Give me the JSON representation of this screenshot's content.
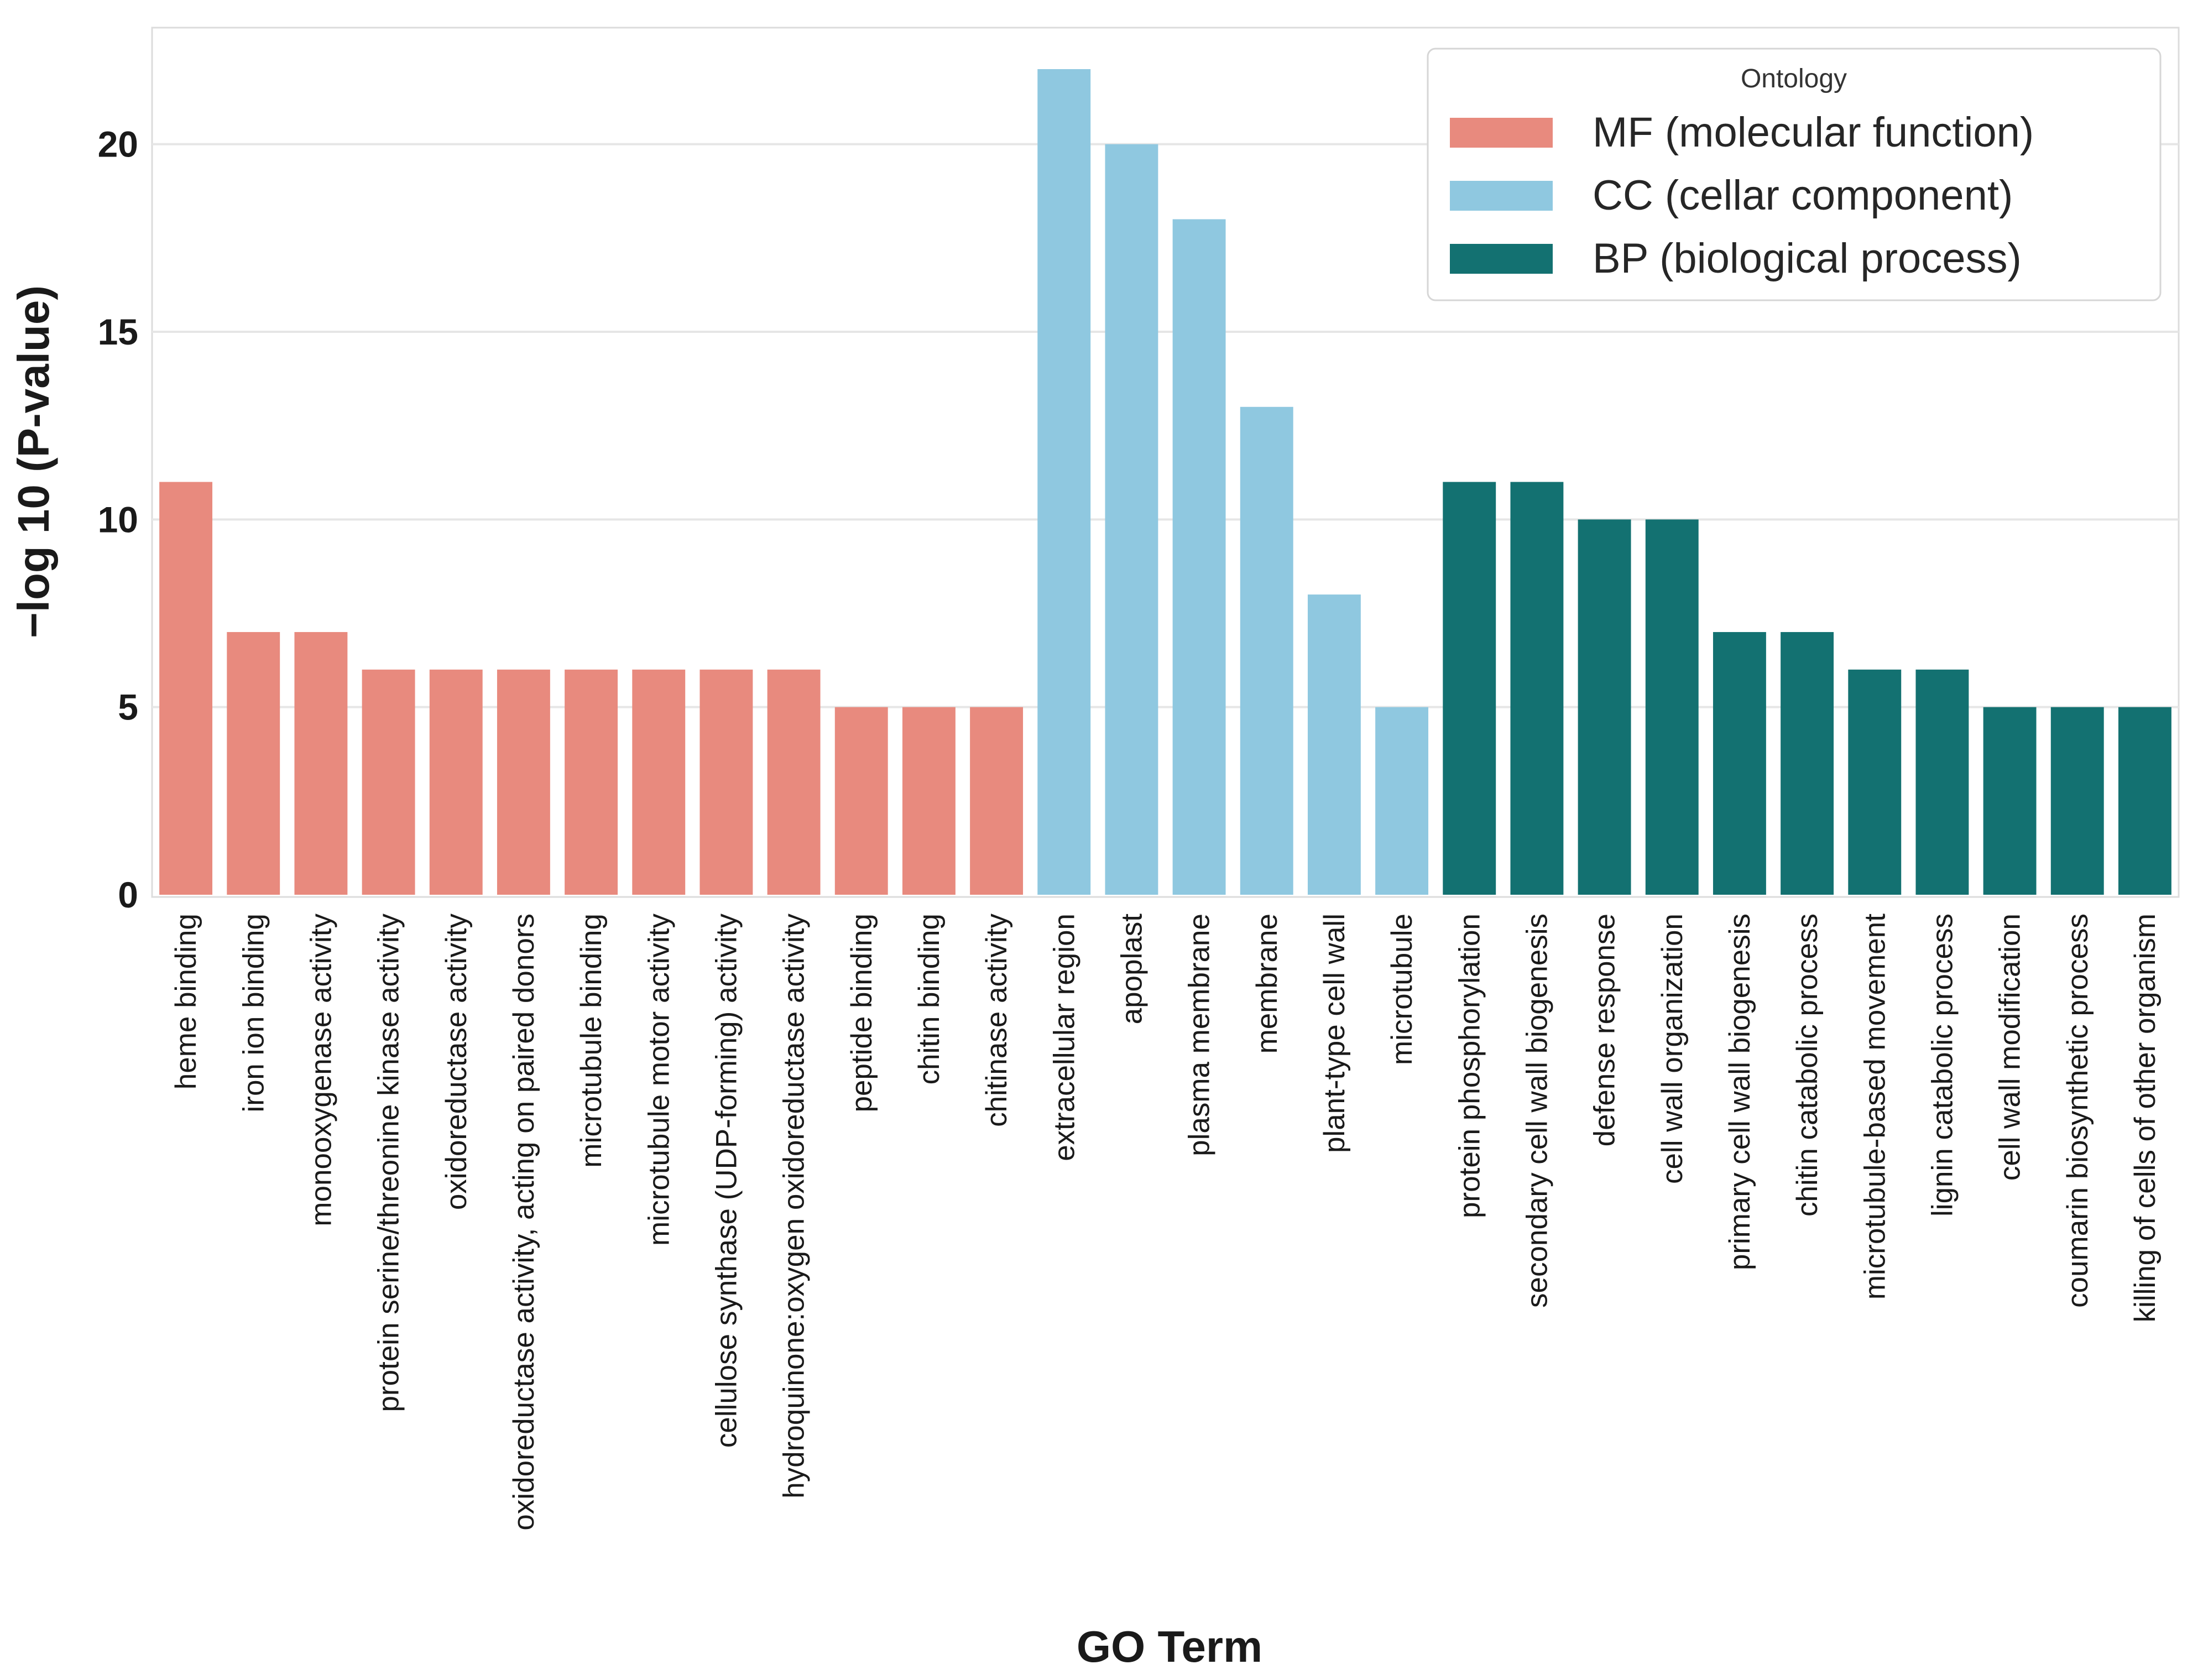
{
  "chart_data": {
    "type": "bar",
    "xlabel": "GO Term",
    "ylabel": "−log 10 (P-value)",
    "ylim": [
      0,
      22
    ],
    "yticks": [
      0,
      5,
      10,
      15,
      20
    ],
    "grid": true,
    "legend": {
      "title": "Ontology",
      "placement": "top-right",
      "entries": [
        {
          "key": "MF",
          "label": "MF (molecular function)",
          "color": "#E88A7E"
        },
        {
          "key": "CC",
          "label": "CC (cellar component)",
          "color": "#8FC8E0"
        },
        {
          "key": "BP",
          "label": "BP (biological process)",
          "color": "#137171"
        }
      ]
    },
    "categories": [
      "heme binding",
      "iron ion binding",
      "monooxygenase activity",
      "protein serine/threonine kinase activity",
      "oxidoreductase activity",
      "oxidoreductase activity, acting on paired donors",
      "microtubule binding",
      "microtubule motor activity",
      "cellulose synthase (UDP-forming) activity",
      "hydroquinone:oxygen oxidoreductase activity",
      "peptide binding",
      "chitin binding",
      "chitinase activity",
      "extracellular region",
      "apoplast",
      "plasma membrane",
      "membrane",
      "plant-type cell wall",
      "microtubule",
      "protein phosphorylation",
      "secondary cell wall biogenesis",
      "defense response",
      "cell wall organization",
      "primary cell wall biogenesis",
      "chitin catabolic process",
      "microtubule-based movement",
      "lignin catabolic process",
      "cell wall modification",
      "coumarin biosynthetic process",
      "killing of cells of other organism"
    ],
    "values": [
      11,
      7,
      7,
      6,
      6,
      6,
      6,
      6,
      6,
      6,
      5,
      5,
      5,
      22,
      20,
      18,
      13,
      8,
      5,
      11,
      11,
      10,
      10,
      7,
      7,
      6,
      6,
      5,
      5,
      5
    ],
    "ontology": [
      "MF",
      "MF",
      "MF",
      "MF",
      "MF",
      "MF",
      "MF",
      "MF",
      "MF",
      "MF",
      "MF",
      "MF",
      "MF",
      "CC",
      "CC",
      "CC",
      "CC",
      "CC",
      "CC",
      "BP",
      "BP",
      "BP",
      "BP",
      "BP",
      "BP",
      "BP",
      "BP",
      "BP",
      "BP",
      "BP"
    ]
  }
}
